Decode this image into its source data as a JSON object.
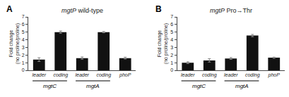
{
  "chart_data": [
    {
      "type": "bar",
      "title": "mgtP",
      "subtitle": "wild-type",
      "categories": [
        "leader",
        "coding",
        "leader",
        "coding",
        "phoP"
      ],
      "values": [
        1.4,
        5.0,
        1.6,
        5.0,
        1.6
      ],
      "errors": [
        0.25,
        0.15,
        0.15,
        0.08,
        0.12
      ],
      "color": "#111111",
      "ylabel": "Fold change\n(no proline/proline)",
      "ylim": [
        0,
        7
      ],
      "yticks": [
        0,
        1,
        2,
        3,
        4,
        5,
        6,
        7
      ],
      "grid": false,
      "annotations": [
        {
          "text": "A"
        },
        {
          "text": "mgtC",
          "x": [
            0,
            1
          ]
        },
        {
          "text": "mgtA",
          "x": [
            2,
            3
          ]
        }
      ]
    },
    {
      "type": "bar",
      "title": "mgtP",
      "subtitle": "Pro→Thr",
      "categories": [
        "leader",
        "coding",
        "leader",
        "coding",
        "phoP"
      ],
      "values": [
        1.0,
        1.3,
        1.55,
        4.55,
        1.65
      ],
      "errors": [
        0.12,
        0.22,
        0.12,
        0.15,
        0.08
      ],
      "color": "#111111",
      "ylabel": "Fold change\n(no proline/proline)",
      "ylim": [
        0,
        7
      ],
      "yticks": [
        0,
        1,
        2,
        3,
        4,
        5,
        6,
        7
      ],
      "grid": false,
      "annotations": [
        {
          "text": "B"
        },
        {
          "text": "mgtC",
          "x": [
            0,
            1
          ]
        },
        {
          "text": "mgtA",
          "x": [
            2,
            3
          ]
        }
      ]
    }
  ]
}
